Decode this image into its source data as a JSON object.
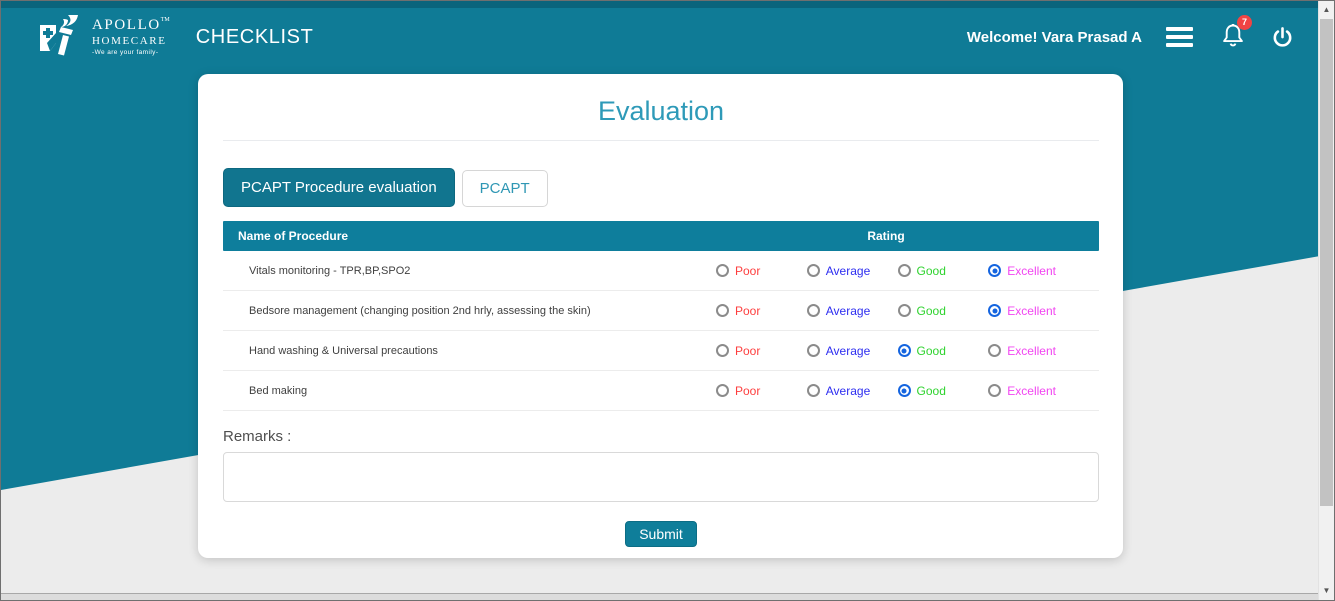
{
  "colors": {
    "brand_teal": "#0f7b96",
    "top_strip_teal": "#0a647c",
    "table_header_teal": "#0e7e9c",
    "title_teal": "#2e9ab8",
    "radio_selected_blue": "#1565e0",
    "badge_red": "#ef4444",
    "page_gray": "#ececec"
  },
  "icons": {
    "scroll_up": "▲",
    "scroll_down": "▼"
  },
  "header": {
    "logo": {
      "line1": "APOLLO",
      "tm": "TM",
      "line2": "HOMECARE",
      "tagline": "-We are your family-"
    },
    "app_title": "CHECKLIST",
    "welcome": "Welcome! Vara Prasad A",
    "notification_count": "7"
  },
  "main": {
    "title": "Evaluation",
    "tabs": [
      {
        "label": "PCAPT Procedure evaluation",
        "active": true
      },
      {
        "label": "PCAPT",
        "active": false
      }
    ],
    "table": {
      "columns": [
        "Name of Procedure",
        "Rating"
      ],
      "options": [
        {
          "label": "Poor",
          "color": "#fd3e3e"
        },
        {
          "label": "Average",
          "color": "#2d2df0"
        },
        {
          "label": "Good",
          "color": "#2fd32f"
        },
        {
          "label": "Excellent",
          "color": "#f145f1"
        }
      ],
      "rows": [
        {
          "name": "Vitals monitoring - TPR,BP,SPO2",
          "selected": "Excellent"
        },
        {
          "name": "Bedsore management (changing position 2nd hrly, assessing the skin)",
          "selected": "Excellent"
        },
        {
          "name": "Hand washing & Universal precautions",
          "selected": "Good"
        },
        {
          "name": "Bed making",
          "selected": "Good"
        }
      ]
    },
    "remarks_label": "Remarks :",
    "remarks_value": "",
    "submit_label": "Submit"
  }
}
